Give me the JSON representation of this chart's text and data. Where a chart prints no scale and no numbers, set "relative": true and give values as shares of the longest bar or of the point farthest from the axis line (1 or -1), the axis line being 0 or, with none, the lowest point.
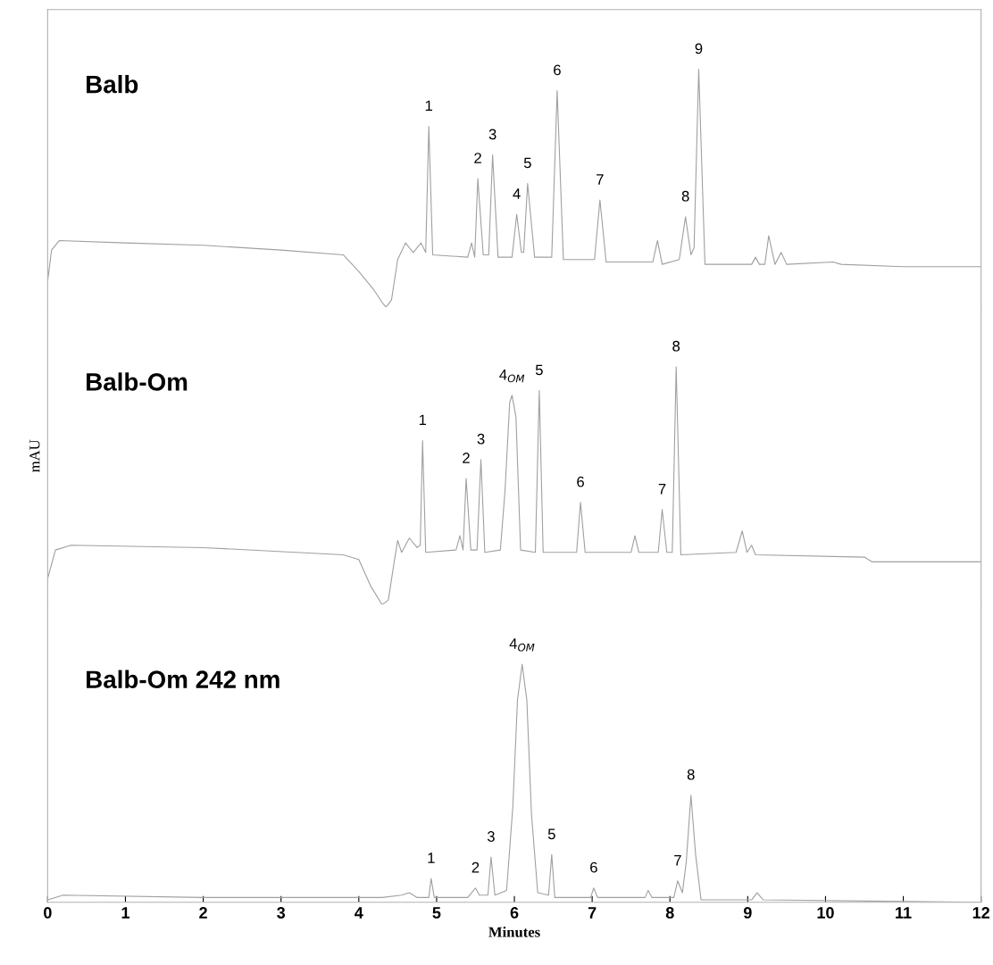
{
  "chart_data": [
    {
      "type": "line",
      "title": "Balb",
      "relative": true,
      "color": "#a0a0a0",
      "xlim": [
        0,
        12
      ],
      "xticks": [
        0,
        1,
        2,
        3,
        4,
        5,
        6,
        7,
        8,
        9,
        10,
        11,
        12
      ],
      "tick_labels": false,
      "x": [
        0,
        0.05,
        0.15,
        1,
        2,
        3,
        3.8,
        4.0,
        4.2,
        4.3,
        4.35,
        4.42,
        4.5,
        4.6,
        4.7,
        4.8,
        4.86,
        4.9,
        4.95,
        5.4,
        5.45,
        5.49,
        5.53,
        5.6,
        5.67,
        5.72,
        5.79,
        5.97,
        6.03,
        6.09,
        6.12,
        6.17,
        6.26,
        6.48,
        6.55,
        6.63,
        7.03,
        7.1,
        7.18,
        7.78,
        7.84,
        7.9,
        8.12,
        8.2,
        8.27,
        8.31,
        8.37,
        8.45,
        9.05,
        9.1,
        9.15,
        9.22,
        9.27,
        9.35,
        9.43,
        9.5,
        10.1,
        10.2,
        11,
        12
      ],
      "values": [
        0.11,
        0.24,
        0.28,
        0.27,
        0.26,
        0.24,
        0.22,
        0.15,
        0.07,
        0.02,
        0,
        0.03,
        0.2,
        0.27,
        0.23,
        0.27,
        0.23,
        0.76,
        0.22,
        0.21,
        0.27,
        0.21,
        0.54,
        0.22,
        0.22,
        0.64,
        0.21,
        0.21,
        0.39,
        0.23,
        0.23,
        0.52,
        0.21,
        0.21,
        0.91,
        0.2,
        0.2,
        0.45,
        0.19,
        0.19,
        0.28,
        0.18,
        0.2,
        0.38,
        0.22,
        0.25,
        1,
        0.18,
        0.18,
        0.21,
        0.18,
        0.18,
        0.3,
        0.18,
        0.23,
        0.18,
        0.19,
        0.18,
        0.17,
        0.17
      ],
      "annotations": [
        {
          "text": "1",
          "x": 4.9,
          "y": 0.76
        },
        {
          "text": "2",
          "x": 5.53,
          "y": 0.54
        },
        {
          "text": "3",
          "x": 5.72,
          "y": 0.64
        },
        {
          "text": "4",
          "x": 6.03,
          "y": 0.39
        },
        {
          "text": "5",
          "x": 6.17,
          "y": 0.52
        },
        {
          "text": "6",
          "x": 6.55,
          "y": 0.91
        },
        {
          "text": "7",
          "x": 7.1,
          "y": 0.45
        },
        {
          "text": "8",
          "x": 8.2,
          "y": 0.38
        },
        {
          "text": "9",
          "x": 8.37,
          "y": 1
        }
      ]
    },
    {
      "type": "line",
      "title": "Balb-Om",
      "ylabel": "mAU",
      "relative": true,
      "color": "#a0a0a0",
      "xlim": [
        0,
        12
      ],
      "xticks": [
        0,
        1,
        2,
        3,
        4,
        5,
        6,
        7,
        8,
        9,
        10,
        11,
        12
      ],
      "tick_labels": false,
      "x": [
        0,
        0.1,
        0.3,
        2,
        3.8,
        4.0,
        4.15,
        4.3,
        4.38,
        4.45,
        4.5,
        4.55,
        4.65,
        4.75,
        4.79,
        4.82,
        4.86,
        5.25,
        5.3,
        5.34,
        5.38,
        5.44,
        5.52,
        5.57,
        5.62,
        5.82,
        5.88,
        5.94,
        5.97,
        6.02,
        6.08,
        6.27,
        6.32,
        6.37,
        6.8,
        6.85,
        6.91,
        7.5,
        7.55,
        7.6,
        7.85,
        7.9,
        7.96,
        8.03,
        8.08,
        8.14,
        8.85,
        8.93,
        8.99,
        9.05,
        9.1,
        10.5,
        10.6,
        12
      ],
      "values": [
        0.11,
        0.23,
        0.25,
        0.24,
        0.21,
        0.19,
        0.08,
        0,
        0.02,
        0.17,
        0.27,
        0.22,
        0.28,
        0.24,
        0.25,
        0.69,
        0.22,
        0.23,
        0.29,
        0.23,
        0.53,
        0.23,
        0.23,
        0.61,
        0.22,
        0.23,
        0.48,
        0.85,
        0.88,
        0.79,
        0.23,
        0.22,
        0.9,
        0.22,
        0.22,
        0.43,
        0.22,
        0.22,
        0.29,
        0.22,
        0.22,
        0.4,
        0.22,
        0.22,
        1,
        0.21,
        0.22,
        0.31,
        0.22,
        0.25,
        0.21,
        0.2,
        0.18,
        0.18
      ],
      "annotations": [
        {
          "text": "1",
          "x": 4.82,
          "y": 0.69
        },
        {
          "text": "2",
          "x": 5.38,
          "y": 0.53
        },
        {
          "text": "3",
          "x": 5.57,
          "y": 0.61
        },
        {
          "text": "4$_{OM}$",
          "x": 5.97,
          "y": 0.88
        },
        {
          "text": "5",
          "x": 6.32,
          "y": 0.9
        },
        {
          "text": "6",
          "x": 6.85,
          "y": 0.43
        },
        {
          "text": "7",
          "x": 7.9,
          "y": 0.4
        },
        {
          "text": "8",
          "x": 8.08,
          "y": 1
        }
      ]
    },
    {
      "type": "line",
      "title": "Balb-Om 242 nm",
      "xlabel": "Minutes",
      "relative": true,
      "color": "#a0a0a0",
      "xlim": [
        0,
        12
      ],
      "xticks": [
        0,
        1,
        2,
        3,
        4,
        5,
        6,
        7,
        8,
        9,
        10,
        11,
        12
      ],
      "tick_labels": "x",
      "x": [
        0,
        0.2,
        2,
        4.3,
        4.55,
        4.65,
        4.75,
        4.9,
        4.93,
        4.97,
        5.4,
        5.45,
        5.5,
        5.55,
        5.66,
        5.7,
        5.75,
        5.9,
        5.98,
        6.04,
        6.1,
        6.16,
        6.22,
        6.3,
        6.44,
        6.48,
        6.52,
        6.98,
        7.02,
        7.07,
        7.68,
        7.72,
        7.77,
        8.05,
        8.1,
        8.16,
        8.21,
        8.27,
        8.33,
        8.4,
        9.05,
        9.12,
        9.2,
        12
      ],
      "values": [
        0.01,
        0.03,
        0.02,
        0.02,
        0.03,
        0.04,
        0.02,
        0.02,
        0.1,
        0.02,
        0.02,
        0.04,
        0.06,
        0.03,
        0.03,
        0.19,
        0.03,
        0.05,
        0.4,
        0.85,
        1,
        0.85,
        0.37,
        0.04,
        0.03,
        0.2,
        0.02,
        0.02,
        0.06,
        0.02,
        0.02,
        0.05,
        0.02,
        0.02,
        0.09,
        0.04,
        0.17,
        0.45,
        0.2,
        0.01,
        0.01,
        0.04,
        0.01,
        0
      ],
      "annotations": [
        {
          "text": "1",
          "x": 4.93,
          "y": 0.1
        },
        {
          "text": "2",
          "x": 5.5,
          "y": 0.06
        },
        {
          "text": "3",
          "x": 5.7,
          "y": 0.19
        },
        {
          "text": "4$_{OM}$",
          "x": 6.1,
          "y": 1
        },
        {
          "text": "5",
          "x": 6.48,
          "y": 0.2
        },
        {
          "text": "6",
          "x": 7.02,
          "y": 0.06
        },
        {
          "text": "7",
          "x": 8.1,
          "y": 0.09
        },
        {
          "text": "8",
          "x": 8.27,
          "y": 0.45
        }
      ]
    }
  ]
}
